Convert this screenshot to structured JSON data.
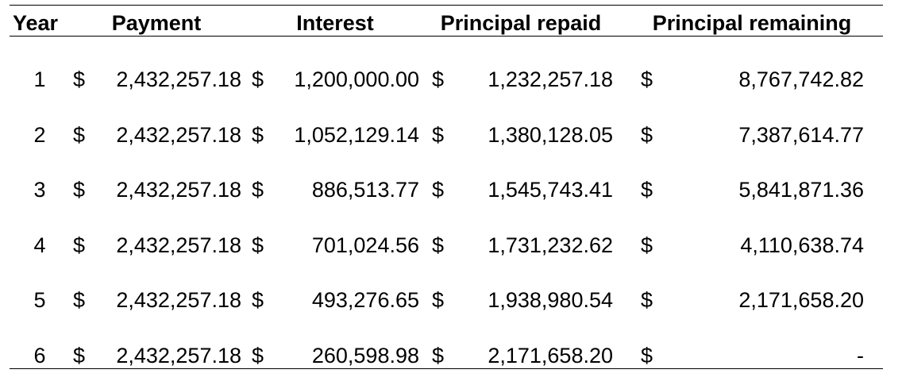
{
  "header": {
    "year": "Year",
    "payment": "Payment",
    "interest": "Interest",
    "principal_repaid": "Principal repaid",
    "principal_remaining": "Principal remaining"
  },
  "currency": "$",
  "rows": [
    {
      "year": "1",
      "payment": "2,432,257.18",
      "interest": "1,200,000.00",
      "principal_repaid": "1,232,257.18",
      "principal_remaining": "8,767,742.82"
    },
    {
      "year": "2",
      "payment": "2,432,257.18",
      "interest": "1,052,129.14",
      "principal_repaid": "1,380,128.05",
      "principal_remaining": "7,387,614.77"
    },
    {
      "year": "3",
      "payment": "2,432,257.18",
      "interest": "886,513.77",
      "principal_repaid": "1,545,743.41",
      "principal_remaining": "5,841,871.36"
    },
    {
      "year": "4",
      "payment": "2,432,257.18",
      "interest": "701,024.56",
      "principal_repaid": "1,731,232.62",
      "principal_remaining": "4,110,638.74"
    },
    {
      "year": "5",
      "payment": "2,432,257.18",
      "interest": "493,276.65",
      "principal_repaid": "1,938,980.54",
      "principal_remaining": "2,171,658.20"
    },
    {
      "year": "6",
      "payment": "2,432,257.18",
      "interest": "260,598.98",
      "principal_repaid": "2,171,658.20",
      "principal_remaining": "-"
    }
  ]
}
